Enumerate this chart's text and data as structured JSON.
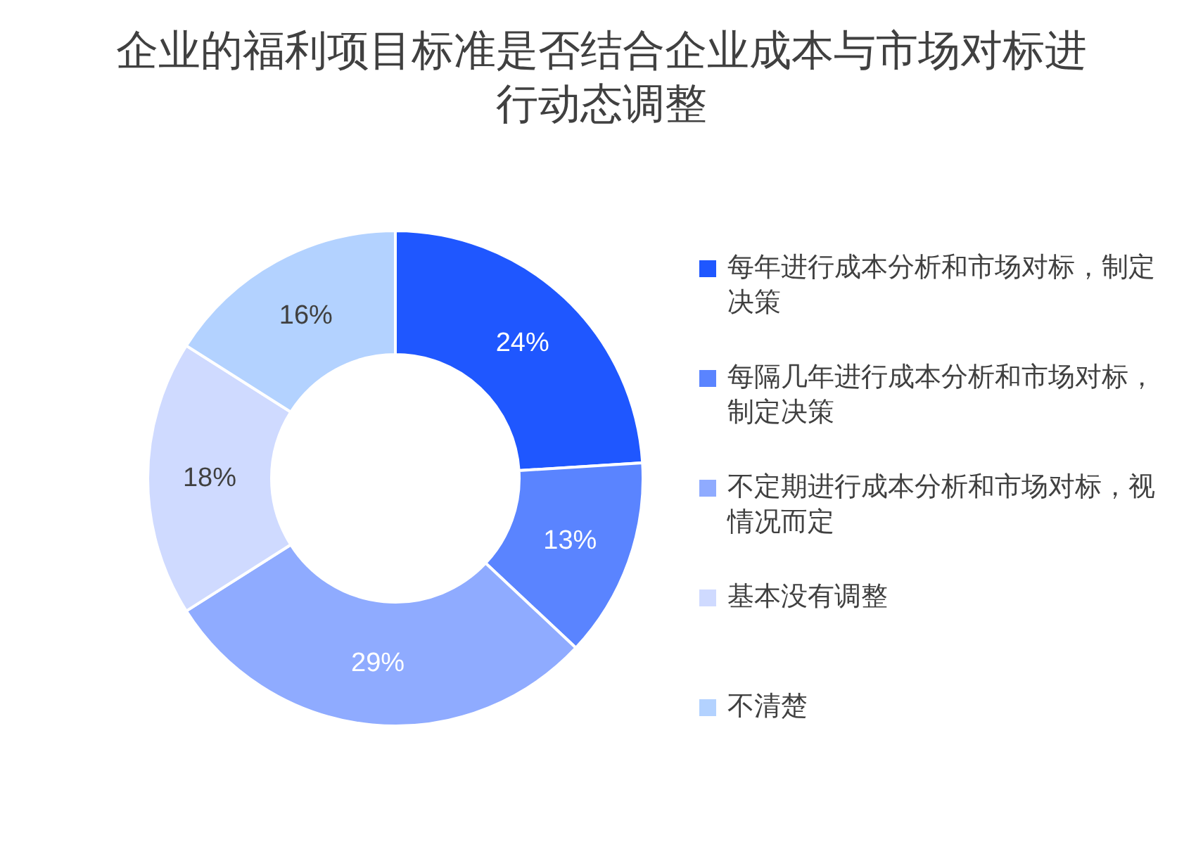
{
  "chart_data": {
    "type": "donut",
    "title": "企业的福利项目标准是否结合企业成本与市场对标进行动态调整",
    "categories": [
      "每年进行成本分析和市场对标，制定决策",
      "每隔几年进行成本分析和市场对标，制定决策",
      "不定期进行成本分析和市场对标，视情况而定",
      "基本没有调整",
      "不清楚"
    ],
    "values": [
      24,
      13,
      29,
      18,
      16
    ],
    "colors": [
      "#1f57ff",
      "#5a84ff",
      "#8fabff",
      "#cfdaff",
      "#b3d2ff"
    ],
    "value_labels": [
      "24%",
      "13%",
      "29%",
      "18%",
      "16%"
    ],
    "legend": "right"
  }
}
